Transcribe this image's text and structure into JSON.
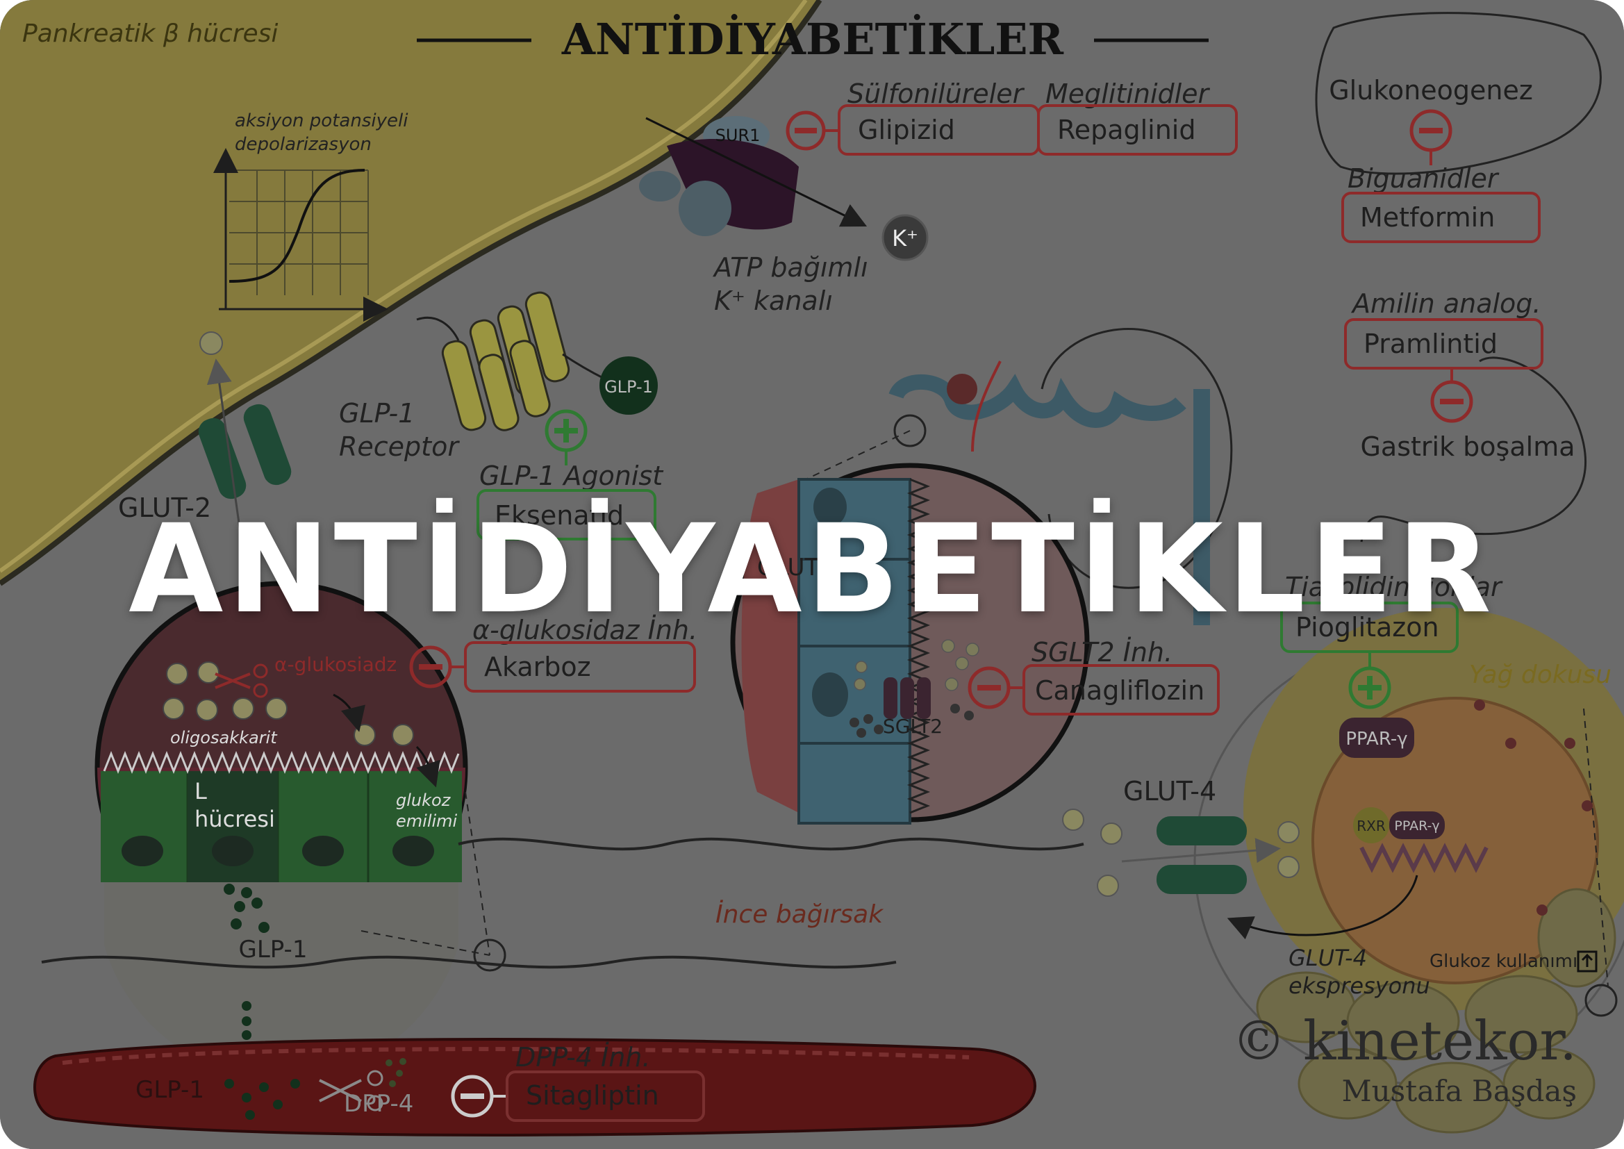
{
  "header": {
    "title": "ANTİDİYABETİKLER",
    "cell_label": "Pankreatik β hücresi"
  },
  "overlay": {
    "title": "ANTİDİYABETİKLER"
  },
  "graph": {
    "ylabel_line1": "aksiyon potansiyeli",
    "ylabel_line2": "depolarizasyon"
  },
  "pancreas": {
    "sur1": "SUR1",
    "katp_line1": "ATP bağımlı",
    "katp_line2": "K⁺ kanalı",
    "k_ion": "K⁺",
    "glp1_receptor_line1": "GLP-1",
    "glp1_receptor_line2": "Receptor",
    "glp1_ligand": "GLP-1",
    "glut2": "GLUT-2"
  },
  "drugs": {
    "sulfonylureas": {
      "class": "Sülfonilüreler",
      "drug": "Glipizid"
    },
    "meglitinides": {
      "class": "Meglitinidler",
      "drug": "Repaglinid"
    },
    "glp1_agonist": {
      "class": "GLP-1 Agonist",
      "drug": "Eksenatid"
    },
    "alpha_glucosidase": {
      "class": "α-glukosidaz İnh.",
      "drug": "Akarboz"
    },
    "sglt2": {
      "class": "SGLT2 İnh.",
      "drug": "Canagliflozin"
    },
    "biguanides": {
      "class": "Biguanidler",
      "drug": "Metformin"
    },
    "amylin": {
      "class": "Amilin analog.",
      "drug": "Pramlintid"
    },
    "tzd": {
      "class": "Tiazolidindionlar",
      "drug": "Pioglitazon"
    },
    "dpp4": {
      "class": "DPP-4 İnh.",
      "drug": "Sitagliptin"
    }
  },
  "liver": {
    "label": "Glukoneogenez"
  },
  "stomach": {
    "label": "Gastrik boşalma"
  },
  "intestine": {
    "enzyme": "α-glukosiadz",
    "oligosaccharide": "oligosakkarit",
    "l_cell_line1": "L",
    "l_cell_line2": "hücresi",
    "absorption_line1": "glukoz",
    "absorption_line2": "emilimi",
    "glp1_release": "GLP-1",
    "region": "İnce bağırsak"
  },
  "kidney": {
    "glut": "GLUT",
    "sglt2": "SGLT2"
  },
  "adipose": {
    "region": "Yağ dokusu",
    "ppar": "PPAR-γ",
    "rxr": "RXR",
    "ppar_small": "PPAR-γ",
    "glut4": "GLUT-4",
    "glut4_expr_line1": "GLUT-4",
    "glut4_expr_line2": "ekspresyonu",
    "glucose_use": "Glukoz kullanımı"
  },
  "vessel": {
    "glp1": "GLP-1",
    "dpp4": "DPP-4"
  },
  "watermark": {
    "brand": "© kinetekor.",
    "author": "Mustafa Başdaş"
  },
  "colors": {
    "background": "#6b6b6b",
    "pancreas_cell": "#8a7f3e",
    "inhibit": "#8e2a2a",
    "activate": "#2f7a32",
    "vessel": "#5a1515"
  },
  "icons": [
    "inhibit-icon",
    "activate-icon",
    "scissors-icon",
    "arrow-up-icon"
  ]
}
